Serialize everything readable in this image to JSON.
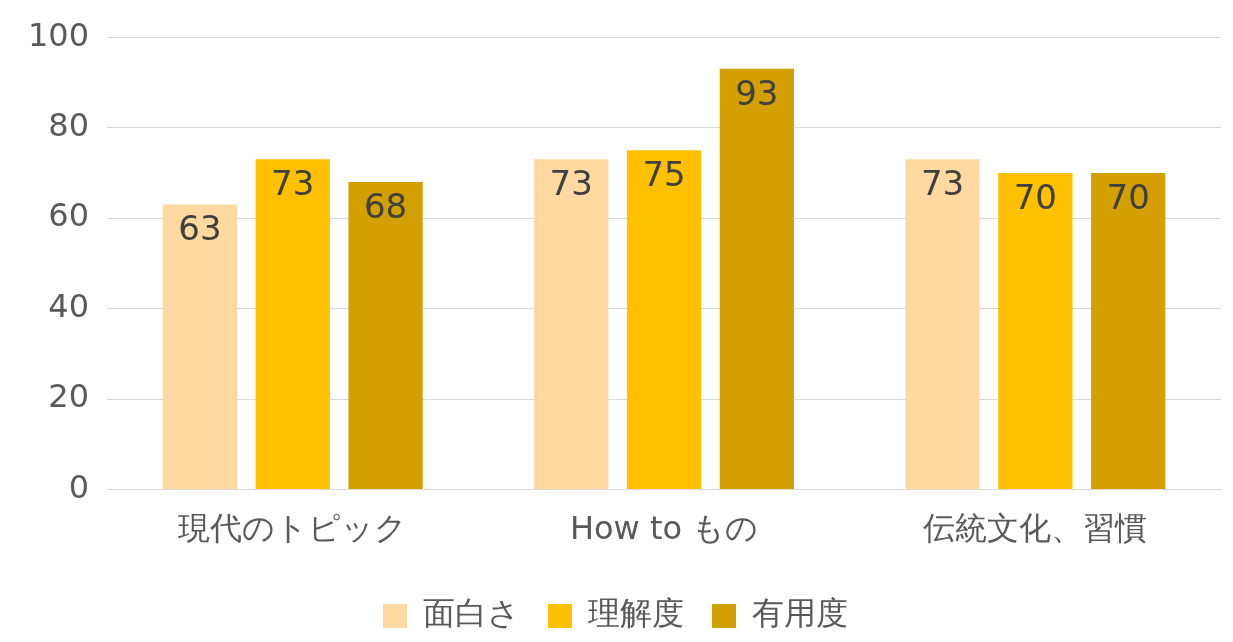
{
  "chart_data": {
    "type": "bar",
    "categories": [
      "現代のトピック",
      "How to もの",
      "伝統文化、習慣"
    ],
    "series": [
      {
        "name": "面白さ",
        "color": "#ffd9a0",
        "values": [
          63,
          73,
          73
        ]
      },
      {
        "name": "理解度",
        "color": "#ffc000",
        "values": [
          73,
          75,
          70
        ]
      },
      {
        "name": "有用度",
        "color": "#d4a000",
        "values": [
          68,
          93,
          70
        ]
      }
    ],
    "ylim": [
      0,
      100
    ],
    "yticks": [
      0,
      20,
      40,
      60,
      80,
      100
    ],
    "grid": "y",
    "legend": "bottom",
    "data_labels": true
  }
}
